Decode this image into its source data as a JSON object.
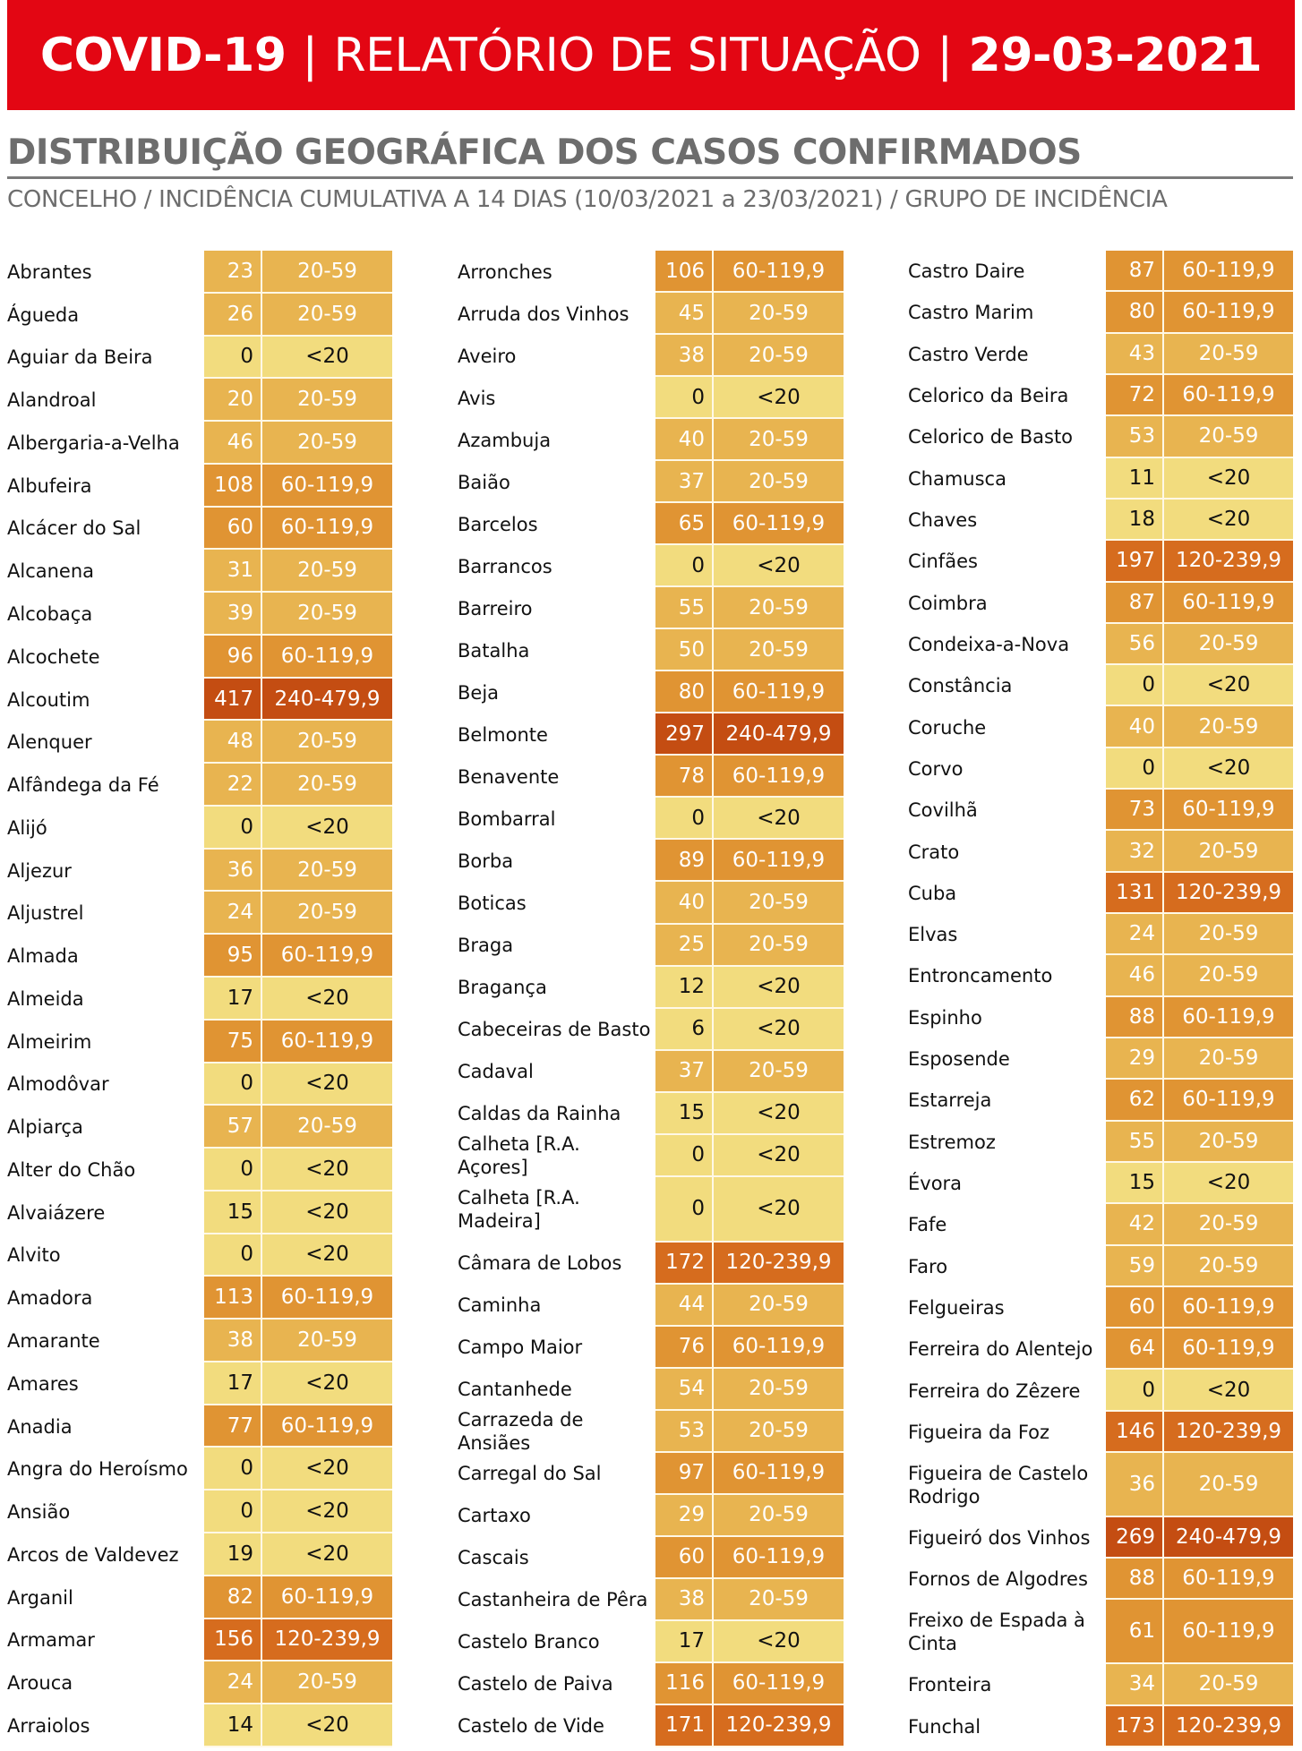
{
  "header": {
    "left": "COVID-19",
    "middle": "RELATÓRIO DE SITUAÇÃO",
    "right": "29-03-2021",
    "separator": "|"
  },
  "title": "DISTRIBUIÇÃO GEOGRÁFICA DOS CASOS CONFIRMADOS",
  "subtitle": "CONCELHO / INCIDÊNCIA CUMULATIVA A 14 DIAS (10/03/2021 a 23/03/2021) / GRUPO DE INCIDÊNCIA",
  "incidence_colors": {
    "<20": "#f2dc7e",
    "20-59": "#e8b450",
    "60-119,9": "#e09433",
    "120-239,9": "#d66c1e",
    "240-479,9": "#c44d12"
  },
  "columns": [
    [
      {
        "name": "Abrantes",
        "value": "23",
        "group": "20-59"
      },
      {
        "name": "Águeda",
        "value": "26",
        "group": "20-59"
      },
      {
        "name": "Aguiar da Beira",
        "value": "0",
        "group": "<20"
      },
      {
        "name": "Alandroal",
        "value": "20",
        "group": "20-59"
      },
      {
        "name": "Albergaria-a-Velha",
        "value": "46",
        "group": "20-59"
      },
      {
        "name": "Albufeira",
        "value": "108",
        "group": "60-119,9"
      },
      {
        "name": "Alcácer do Sal",
        "value": "60",
        "group": "60-119,9"
      },
      {
        "name": "Alcanena",
        "value": "31",
        "group": "20-59"
      },
      {
        "name": "Alcobaça",
        "value": "39",
        "group": "20-59"
      },
      {
        "name": "Alcochete",
        "value": "96",
        "group": "60-119,9"
      },
      {
        "name": "Alcoutim",
        "value": "417",
        "group": "240-479,9"
      },
      {
        "name": "Alenquer",
        "value": "48",
        "group": "20-59"
      },
      {
        "name": "Alfândega da Fé",
        "value": "22",
        "group": "20-59"
      },
      {
        "name": "Alijó",
        "value": "0",
        "group": "<20"
      },
      {
        "name": "Aljezur",
        "value": "36",
        "group": "20-59"
      },
      {
        "name": "Aljustrel",
        "value": "24",
        "group": "20-59"
      },
      {
        "name": "Almada",
        "value": "95",
        "group": "60-119,9"
      },
      {
        "name": "Almeida",
        "value": "17",
        "group": "<20"
      },
      {
        "name": "Almeirim",
        "value": "75",
        "group": "60-119,9"
      },
      {
        "name": "Almodôvar",
        "value": "0",
        "group": "<20"
      },
      {
        "name": "Alpiarça",
        "value": "57",
        "group": "20-59"
      },
      {
        "name": "Alter do Chão",
        "value": "0",
        "group": "<20"
      },
      {
        "name": "Alvaiázere",
        "value": "15",
        "group": "<20"
      },
      {
        "name": "Alvito",
        "value": "0",
        "group": "<20"
      },
      {
        "name": "Amadora",
        "value": "113",
        "group": "60-119,9"
      },
      {
        "name": "Amarante",
        "value": "38",
        "group": "20-59"
      },
      {
        "name": "Amares",
        "value": "17",
        "group": "<20"
      },
      {
        "name": "Anadia",
        "value": "77",
        "group": "60-119,9"
      },
      {
        "name": "Angra do Heroísmo",
        "value": "0",
        "group": "<20"
      },
      {
        "name": "Ansião",
        "value": "0",
        "group": "<20"
      },
      {
        "name": "Arcos de Valdevez",
        "value": "19",
        "group": "<20"
      },
      {
        "name": "Arganil",
        "value": "82",
        "group": "60-119,9"
      },
      {
        "name": "Armamar",
        "value": "156",
        "group": "120-239,9"
      },
      {
        "name": "Arouca",
        "value": "24",
        "group": "20-59"
      },
      {
        "name": "Arraiolos",
        "value": "14",
        "group": "<20"
      }
    ],
    [
      {
        "name": "Arronches",
        "value": "106",
        "group": "60-119,9"
      },
      {
        "name": "Arruda dos Vinhos",
        "value": "45",
        "group": "20-59"
      },
      {
        "name": "Aveiro",
        "value": "38",
        "group": "20-59"
      },
      {
        "name": "Avis",
        "value": "0",
        "group": "<20"
      },
      {
        "name": "Azambuja",
        "value": "40",
        "group": "20-59"
      },
      {
        "name": "Baião",
        "value": "37",
        "group": "20-59"
      },
      {
        "name": "Barcelos",
        "value": "65",
        "group": "60-119,9"
      },
      {
        "name": "Barrancos",
        "value": "0",
        "group": "<20"
      },
      {
        "name": "Barreiro",
        "value": "55",
        "group": "20-59"
      },
      {
        "name": "Batalha",
        "value": "50",
        "group": "20-59"
      },
      {
        "name": "Beja",
        "value": "80",
        "group": "60-119,9"
      },
      {
        "name": "Belmonte",
        "value": "297",
        "group": "240-479,9"
      },
      {
        "name": "Benavente",
        "value": "78",
        "group": "60-119,9"
      },
      {
        "name": "Bombarral",
        "value": "0",
        "group": "<20"
      },
      {
        "name": "Borba",
        "value": "89",
        "group": "60-119,9"
      },
      {
        "name": "Boticas",
        "value": "40",
        "group": "20-59"
      },
      {
        "name": "Braga",
        "value": "25",
        "group": "20-59"
      },
      {
        "name": "Bragança",
        "value": "12",
        "group": "<20"
      },
      {
        "name": "Cabeceiras de Basto",
        "value": "6",
        "group": "<20"
      },
      {
        "name": "Cadaval",
        "value": "37",
        "group": "20-59"
      },
      {
        "name": "Caldas da Rainha",
        "value": "15",
        "group": "<20"
      },
      {
        "name": "Calheta [R.A. Açores]",
        "value": "0",
        "group": "<20"
      },
      {
        "name": "Calheta [R.A. Madeira]",
        "value": "0",
        "group": "<20",
        "tall": true
      },
      {
        "name": "Câmara de Lobos",
        "value": "172",
        "group": "120-239,9"
      },
      {
        "name": "Caminha",
        "value": "44",
        "group": "20-59"
      },
      {
        "name": "Campo Maior",
        "value": "76",
        "group": "60-119,9"
      },
      {
        "name": "Cantanhede",
        "value": "54",
        "group": "20-59"
      },
      {
        "name": "Carrazeda de Ansiães",
        "value": "53",
        "group": "20-59"
      },
      {
        "name": "Carregal do Sal",
        "value": "97",
        "group": "60-119,9"
      },
      {
        "name": "Cartaxo",
        "value": "29",
        "group": "20-59"
      },
      {
        "name": "Cascais",
        "value": "60",
        "group": "60-119,9"
      },
      {
        "name": "Castanheira de Pêra",
        "value": "38",
        "group": "20-59"
      },
      {
        "name": "Castelo Branco",
        "value": "17",
        "group": "<20"
      },
      {
        "name": "Castelo de Paiva",
        "value": "116",
        "group": "60-119,9"
      },
      {
        "name": "Castelo de Vide",
        "value": "171",
        "group": "120-239,9"
      }
    ],
    [
      {
        "name": "Castro Daire",
        "value": "87",
        "group": "60-119,9"
      },
      {
        "name": "Castro Marim",
        "value": "80",
        "group": "60-119,9"
      },
      {
        "name": "Castro Verde",
        "value": "43",
        "group": "20-59"
      },
      {
        "name": "Celorico da Beira",
        "value": "72",
        "group": "60-119,9"
      },
      {
        "name": "Celorico de Basto",
        "value": "53",
        "group": "20-59"
      },
      {
        "name": "Chamusca",
        "value": "11",
        "group": "<20"
      },
      {
        "name": "Chaves",
        "value": "18",
        "group": "<20"
      },
      {
        "name": "Cinfães",
        "value": "197",
        "group": "120-239,9"
      },
      {
        "name": "Coimbra",
        "value": "87",
        "group": "60-119,9"
      },
      {
        "name": "Condeixa-a-Nova",
        "value": "56",
        "group": "20-59"
      },
      {
        "name": "Constância",
        "value": "0",
        "group": "<20"
      },
      {
        "name": "Coruche",
        "value": "40",
        "group": "20-59"
      },
      {
        "name": "Corvo",
        "value": "0",
        "group": "<20"
      },
      {
        "name": "Covilhã",
        "value": "73",
        "group": "60-119,9"
      },
      {
        "name": "Crato",
        "value": "32",
        "group": "20-59"
      },
      {
        "name": "Cuba",
        "value": "131",
        "group": "120-239,9"
      },
      {
        "name": "Elvas",
        "value": "24",
        "group": "20-59"
      },
      {
        "name": "Entroncamento",
        "value": "46",
        "group": "20-59"
      },
      {
        "name": "Espinho",
        "value": "88",
        "group": "60-119,9"
      },
      {
        "name": "Esposende",
        "value": "29",
        "group": "20-59"
      },
      {
        "name": "Estarreja",
        "value": "62",
        "group": "60-119,9"
      },
      {
        "name": "Estremoz",
        "value": "55",
        "group": "20-59"
      },
      {
        "name": "Évora",
        "value": "15",
        "group": "<20"
      },
      {
        "name": "Fafe",
        "value": "42",
        "group": "20-59"
      },
      {
        "name": "Faro",
        "value": "59",
        "group": "20-59"
      },
      {
        "name": "Felgueiras",
        "value": "60",
        "group": "60-119,9"
      },
      {
        "name": "Ferreira do Alentejo",
        "value": "64",
        "group": "60-119,9"
      },
      {
        "name": "Ferreira do Zêzere",
        "value": "0",
        "group": "<20"
      },
      {
        "name": "Figueira da Foz",
        "value": "146",
        "group": "120-239,9"
      },
      {
        "name": "Figueira de Castelo Rodrigo",
        "value": "36",
        "group": "20-59",
        "tall": true
      },
      {
        "name": "Figueiró dos Vinhos",
        "value": "269",
        "group": "240-479,9"
      },
      {
        "name": "Fornos de Algodres",
        "value": "88",
        "group": "60-119,9"
      },
      {
        "name": "Freixo de Espada à Cinta",
        "value": "61",
        "group": "60-119,9",
        "tall": true
      },
      {
        "name": "Fronteira",
        "value": "34",
        "group": "20-59"
      },
      {
        "name": "Funchal",
        "value": "173",
        "group": "120-239,9"
      }
    ]
  ]
}
